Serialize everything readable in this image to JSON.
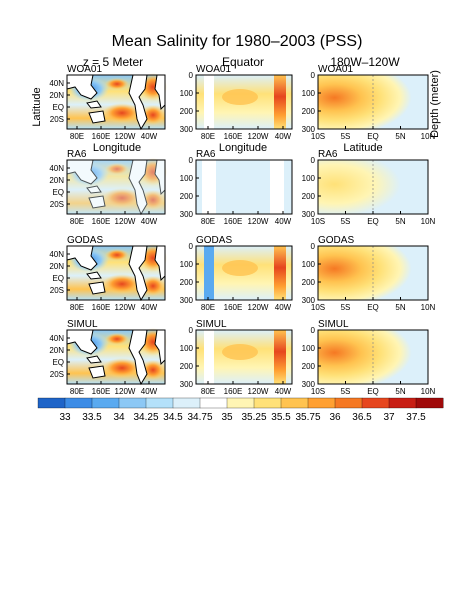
{
  "chart_data": {
    "type": "heatmap",
    "title": "Mean Salinity for 1980–2003 (PSS)",
    "column_titles": [
      "z = 5 Meter",
      "Equator",
      "180W–120W"
    ],
    "rows": [
      "WOA01",
      "RA6",
      "GODAS",
      "SIMUL"
    ],
    "map_panels": {
      "ylabel": "Latitude",
      "xlabel": "Longitude",
      "y_ticks": [
        "40N",
        "20N",
        "EQ",
        "20S"
      ],
      "x_ticks": [
        "80E",
        "160E",
        "120W",
        "40W"
      ]
    },
    "equator_panels": {
      "xlabel": "Longitude",
      "y_ticks": [
        "0",
        "100",
        "200",
        "300"
      ],
      "ylim": [
        0,
        300
      ],
      "x_ticks": [
        "80E",
        "160E",
        "120W",
        "40W"
      ]
    },
    "meridional_panels": {
      "xlabel": "Latitude",
      "ylabel": "Depth (meter)",
      "y_ticks": [
        "0",
        "100",
        "200",
        "300"
      ],
      "ylim": [
        0,
        300
      ],
      "x_ticks": [
        "10S",
        "5S",
        "EQ",
        "5N",
        "10N"
      ]
    },
    "colorbar": {
      "levels": [
        "33",
        "33.5",
        "34",
        "34.25",
        "34.5",
        "34.75",
        "35",
        "35.25",
        "35.5",
        "35.75",
        "36",
        "36.5",
        "37",
        "37.5"
      ],
      "colors": [
        "#1e64c8",
        "#3c8ce6",
        "#5aaaf0",
        "#8cc8f5",
        "#b4e1fa",
        "#dcf0fa",
        "#ffffff",
        "#fff5b4",
        "#ffe178",
        "#ffc350",
        "#ffa032",
        "#f57823",
        "#e6461e",
        "#c81e14",
        "#a00a0a"
      ]
    }
  }
}
